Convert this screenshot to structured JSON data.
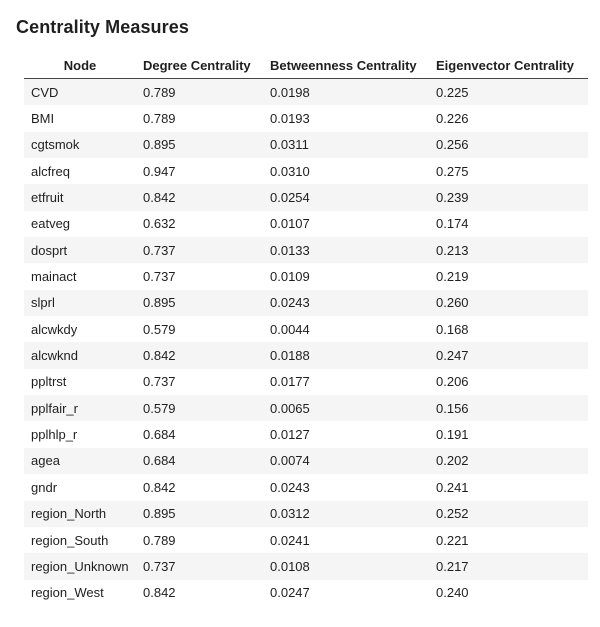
{
  "title": "Centrality Measures",
  "columns": [
    "Node",
    "Degree Centrality",
    "Betweenness Centrality",
    "Eigenvector Centrality"
  ],
  "rows": [
    [
      "CVD",
      "0.789",
      "0.0198",
      "0.225"
    ],
    [
      "BMI",
      "0.789",
      "0.0193",
      "0.226"
    ],
    [
      "cgtsmok",
      "0.895",
      "0.0311",
      "0.256"
    ],
    [
      "alcfreq",
      "0.947",
      "0.0310",
      "0.275"
    ],
    [
      "etfruit",
      "0.842",
      "0.0254",
      "0.239"
    ],
    [
      "eatveg",
      "0.632",
      "0.0107",
      "0.174"
    ],
    [
      "dosprt",
      "0.737",
      "0.0133",
      "0.213"
    ],
    [
      "mainact",
      "0.737",
      "0.0109",
      "0.219"
    ],
    [
      "slprl",
      "0.895",
      "0.0243",
      "0.260"
    ],
    [
      "alcwkdy",
      "0.579",
      "0.0044",
      "0.168"
    ],
    [
      "alcwknd",
      "0.842",
      "0.0188",
      "0.247"
    ],
    [
      "ppltrst",
      "0.737",
      "0.0177",
      "0.206"
    ],
    [
      "pplfair_r",
      "0.579",
      "0.0065",
      "0.156"
    ],
    [
      "pplhlp_r",
      "0.684",
      "0.0127",
      "0.191"
    ],
    [
      "agea",
      "0.684",
      "0.0074",
      "0.202"
    ],
    [
      "gndr",
      "0.842",
      "0.0243",
      "0.241"
    ],
    [
      "region_North",
      "0.895",
      "0.0312",
      "0.252"
    ],
    [
      "region_South",
      "0.789",
      "0.0241",
      "0.221"
    ],
    [
      "region_Unknown",
      "0.737",
      "0.0108",
      "0.217"
    ],
    [
      "region_West",
      "0.842",
      "0.0247",
      "0.240"
    ]
  ]
}
